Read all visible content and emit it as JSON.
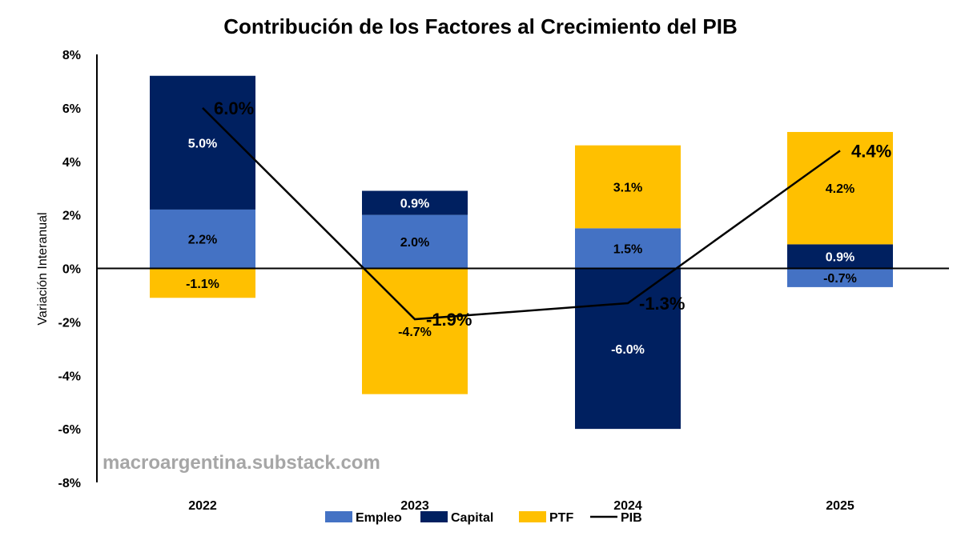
{
  "chart_data": {
    "type": "bar",
    "stacked": true,
    "title": "Contribución de los Factores al Crecimiento del PIB",
    "ylabel": "Variación Interanual",
    "xlabel": "",
    "categories": [
      "2022",
      "2023",
      "2024",
      "2025"
    ],
    "ylim": [
      -8,
      8
    ],
    "yticks": [
      8,
      6,
      4,
      2,
      0,
      -2,
      -4,
      -6,
      -8
    ],
    "ytick_labels": [
      "8%",
      "6%",
      "4%",
      "2%",
      "0%",
      "-2%",
      "-4%",
      "-6%",
      "-8%"
    ],
    "series": [
      {
        "name": "Empleo",
        "values": [
          2.2,
          2.0,
          1.5,
          -0.7
        ],
        "labels": [
          "2.2%",
          "2.0%",
          "1.5%",
          "-0.7%"
        ],
        "color": "#4472c4",
        "label_color": "#000000"
      },
      {
        "name": "Capital",
        "values": [
          5.0,
          0.9,
          -6.0,
          0.9
        ],
        "labels": [
          "5.0%",
          "0.9%",
          "-6.0%",
          "0.9%"
        ],
        "color": "#002060",
        "label_color": "#ffffff"
      },
      {
        "name": "PTF",
        "values": [
          -1.1,
          -4.7,
          3.1,
          4.2
        ],
        "labels": [
          "-1.1%",
          "-4.7%",
          "3.1%",
          "4.2%"
        ],
        "color": "#ffc000",
        "label_color": "#000000"
      }
    ],
    "line": {
      "name": "PIB",
      "values": [
        6.0,
        -1.9,
        -1.3,
        4.4
      ],
      "labels": [
        "6.0%",
        "-1.9%",
        "-1.3%",
        "4.4%"
      ],
      "color": "#000000"
    },
    "legend_position": "bottom",
    "grid": false
  },
  "watermark": "macroargentina.substack.com"
}
